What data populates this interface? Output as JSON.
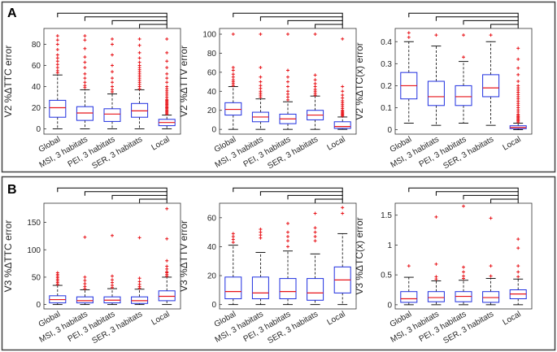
{
  "panels": [
    {
      "label": "A",
      "row": 0
    },
    {
      "label": "B",
      "row": 1
    }
  ],
  "group_labels": [
    "Global",
    "MSI, 3 habitats",
    "PEI, 3 habitats",
    "SER, 3 habitats",
    "Local"
  ],
  "colors": {
    "box": "#1f2fe0",
    "median": "#e8141a",
    "outlier": "#e8141a",
    "whisker": "#000000",
    "frame": "#333333",
    "panel_border": "#444444"
  },
  "chart_data": [
    {
      "type": "boxplot",
      "panel": "A",
      "ylabel": "V2 %ΔTTC error",
      "ylim": [
        -5,
        95
      ],
      "yticks": [
        0,
        20,
        40,
        60,
        80
      ],
      "ytick_labels": [
        "0",
        "20",
        "40",
        "60",
        "80"
      ],
      "categories": [
        "Global",
        "MSI, 3 habitats",
        "PEI, 3 habitats",
        "SER, 3 habitats",
        "Local"
      ],
      "boxes": [
        {
          "min": 0,
          "q1": 11,
          "median": 20,
          "q3": 27,
          "max": 51,
          "outliers": [
            53,
            55,
            58,
            61,
            64,
            67,
            70,
            75,
            80,
            84,
            88
          ]
        },
        {
          "min": 0,
          "q1": 8,
          "median": 15,
          "q3": 21,
          "max": 37,
          "outliers": [
            39,
            41,
            44,
            48,
            52,
            58,
            63,
            68,
            76,
            84,
            88
          ]
        },
        {
          "min": 0,
          "q1": 7,
          "median": 14,
          "q3": 19,
          "max": 33,
          "outliers": [
            35,
            37,
            40,
            44,
            48,
            54,
            60,
            70,
            80,
            85
          ]
        },
        {
          "min": 0,
          "q1": 11,
          "median": 17,
          "q3": 24,
          "max": 37,
          "outliers": [
            38,
            40,
            42,
            44,
            46,
            48,
            50,
            52,
            54,
            56,
            58,
            60,
            63,
            67,
            72,
            79,
            85
          ]
        },
        {
          "min": 0,
          "q1": 3,
          "median": 6,
          "q3": 9,
          "max": 13,
          "outliers": [
            14,
            15,
            16,
            17,
            18,
            19,
            20,
            21,
            22,
            23,
            24,
            25,
            26,
            27,
            28,
            30,
            32,
            34,
            36,
            38,
            40,
            44,
            48,
            52,
            58,
            64,
            72,
            85
          ]
        }
      ]
    },
    {
      "type": "boxplot",
      "panel": "A",
      "ylabel": "V2 %ΔTTV error",
      "ylim": [
        -5,
        106
      ],
      "yticks": [
        0,
        20,
        40,
        60,
        80,
        100
      ],
      "ytick_labels": [
        "0",
        "20",
        "40",
        "60",
        "80",
        "100"
      ],
      "categories": [
        "Global",
        "MSI, 3 habitats",
        "PEI, 3 habitats",
        "SER, 3 habitats",
        "Local"
      ],
      "boxes": [
        {
          "min": 0,
          "q1": 15,
          "median": 21,
          "q3": 28,
          "max": 45,
          "outliers": [
            46,
            48,
            50,
            52,
            55,
            58,
            62,
            65,
            100
          ]
        },
        {
          "min": 0,
          "q1": 8,
          "median": 13,
          "q3": 18,
          "max": 32,
          "outliers": [
            34,
            36,
            38,
            40,
            43,
            46,
            50,
            55,
            65,
            100
          ]
        },
        {
          "min": 0,
          "q1": 6,
          "median": 11,
          "q3": 16,
          "max": 29,
          "outliers": [
            31,
            34,
            37,
            40,
            45,
            50,
            55,
            62,
            100
          ]
        },
        {
          "min": 0,
          "q1": 10,
          "median": 15,
          "q3": 20,
          "max": 35,
          "outliers": [
            36,
            38,
            40,
            42,
            45,
            48,
            52,
            57,
            100
          ]
        },
        {
          "min": 0,
          "q1": 1,
          "median": 3,
          "q3": 8,
          "max": 13,
          "outliers": [
            14,
            15,
            16,
            17,
            18,
            19,
            20,
            22,
            24,
            26,
            28,
            30,
            33,
            36,
            40,
            45,
            95
          ]
        }
      ]
    },
    {
      "type": "boxplot",
      "panel": "A",
      "ylabel": "V2 %ΔTC(x) error",
      "ylim": [
        -0.02,
        0.46
      ],
      "yticks": [
        0,
        0.1,
        0.2,
        0.3,
        0.4
      ],
      "ytick_labels": [
        "0",
        "0.1",
        "0.2",
        "0.3",
        "0.4"
      ],
      "categories": [
        "Global",
        "MSI, 3 habitats",
        "PEI, 3 habitats",
        "SER, 3 habitats",
        "Local"
      ],
      "boxes": [
        {
          "min": 0.03,
          "q1": 0.14,
          "median": 0.2,
          "q3": 0.26,
          "max": 0.4,
          "outliers": [
            0.42,
            0.44
          ]
        },
        {
          "min": 0.02,
          "q1": 0.11,
          "median": 0.15,
          "q3": 0.22,
          "max": 0.38,
          "outliers": [
            0.43
          ]
        },
        {
          "min": 0.03,
          "q1": 0.11,
          "median": 0.15,
          "q3": 0.2,
          "max": 0.31,
          "outliers": [
            0.33,
            0.43
          ]
        },
        {
          "min": 0.02,
          "q1": 0.15,
          "median": 0.19,
          "q3": 0.25,
          "max": 0.4,
          "outliers": [
            0.43
          ]
        },
        {
          "min": 0.0,
          "q1": 0.005,
          "median": 0.01,
          "q3": 0.018,
          "max": 0.03,
          "outliers": [
            0.035,
            0.04,
            0.045,
            0.05,
            0.055,
            0.06,
            0.065,
            0.07,
            0.08,
            0.09,
            0.1,
            0.11,
            0.12,
            0.13,
            0.14,
            0.15,
            0.16,
            0.17,
            0.18,
            0.19,
            0.2,
            0.22,
            0.25,
            0.28,
            0.32,
            0.37
          ]
        }
      ]
    },
    {
      "type": "boxplot",
      "panel": "B",
      "ylabel": "V3 %ΔTTC error",
      "ylim": [
        -8,
        185
      ],
      "yticks": [
        0,
        50,
        100,
        150
      ],
      "ytick_labels": [
        "0",
        "50",
        "100",
        "150"
      ],
      "categories": [
        "Global",
        "MSI, 3 habitats",
        "PEI, 3 habitats",
        "SER, 3 habitats",
        "Local"
      ],
      "boxes": [
        {
          "min": 0,
          "q1": 3,
          "median": 9,
          "q3": 16,
          "max": 35,
          "outliers": [
            37,
            40,
            43,
            46,
            49,
            52,
            55,
            58
          ]
        },
        {
          "min": 0,
          "q1": 3,
          "median": 7,
          "q3": 14,
          "max": 27,
          "outliers": [
            29,
            33,
            38,
            44,
            50,
            123
          ]
        },
        {
          "min": 0,
          "q1": 3,
          "median": 8,
          "q3": 14,
          "max": 29,
          "outliers": [
            31,
            35,
            40,
            45,
            52,
            126
          ]
        },
        {
          "min": 0,
          "q1": 2,
          "median": 7,
          "q3": 14,
          "max": 28,
          "outliers": [
            30,
            33,
            37,
            42,
            48,
            122
          ]
        },
        {
          "min": 0,
          "q1": 7,
          "median": 15,
          "q3": 25,
          "max": 50,
          "outliers": [
            52,
            55,
            58,
            60,
            65,
            70,
            80,
            120,
            175
          ]
        }
      ]
    },
    {
      "type": "boxplot",
      "panel": "B",
      "ylabel": "V3 %ΔTTV error",
      "ylim": [
        -3,
        70
      ],
      "yticks": [
        0,
        20,
        40,
        60
      ],
      "ytick_labels": [
        "0",
        "20",
        "40",
        "60"
      ],
      "categories": [
        "Global",
        "MSI, 3 habitats",
        "PEI, 3 habitats",
        "SER, 3 habitats",
        "Local"
      ],
      "boxes": [
        {
          "min": 0,
          "q1": 4,
          "median": 9,
          "q3": 19,
          "max": 41,
          "outliers": [
            43,
            45,
            47,
            49
          ]
        },
        {
          "min": 0,
          "q1": 4,
          "median": 8,
          "q3": 19,
          "max": 36,
          "outliers": [
            46,
            48,
            50,
            52
          ]
        },
        {
          "min": 0,
          "q1": 4,
          "median": 9,
          "q3": 18,
          "max": 37,
          "outliers": [
            40,
            44,
            47,
            50,
            56
          ]
        },
        {
          "min": 0,
          "q1": 3,
          "median": 8,
          "q3": 18,
          "max": 35,
          "outliers": [
            44,
            47,
            50,
            53,
            63
          ]
        },
        {
          "min": 0,
          "q1": 8,
          "median": 17,
          "q3": 26,
          "max": 49,
          "outliers": [
            63,
            67
          ]
        }
      ]
    },
    {
      "type": "boxplot",
      "panel": "B",
      "ylabel": "V3 %ΔTC(x) error",
      "ylim": [
        -0.07,
        1.7
      ],
      "yticks": [
        0,
        0.5,
        1.0,
        1.5
      ],
      "ytick_labels": [
        "0",
        "0.5",
        "1",
        "1.5"
      ],
      "categories": [
        "Global",
        "MSI, 3 habitats",
        "PEI, 3 habitats",
        "SER, 3 habitats",
        "Local"
      ],
      "boxes": [
        {
          "min": 0,
          "q1": 0.04,
          "median": 0.1,
          "q3": 0.22,
          "max": 0.46,
          "outliers": [
            0.65
          ]
        },
        {
          "min": 0,
          "q1": 0.05,
          "median": 0.12,
          "q3": 0.22,
          "max": 0.4,
          "outliers": [
            0.43,
            0.47,
            0.68,
            1.47
          ]
        },
        {
          "min": 0,
          "q1": 0.05,
          "median": 0.14,
          "q3": 0.22,
          "max": 0.41,
          "outliers": [
            0.44,
            0.48,
            0.55,
            0.63,
            1.65
          ]
        },
        {
          "min": 0,
          "q1": 0.04,
          "median": 0.12,
          "q3": 0.22,
          "max": 0.44,
          "outliers": [
            0.48,
            0.65,
            1.45
          ]
        },
        {
          "min": 0,
          "q1": 0.1,
          "median": 0.18,
          "q3": 0.25,
          "max": 0.43,
          "outliers": [
            0.47,
            0.55,
            0.65,
            0.95,
            1.1
          ]
        }
      ]
    }
  ]
}
